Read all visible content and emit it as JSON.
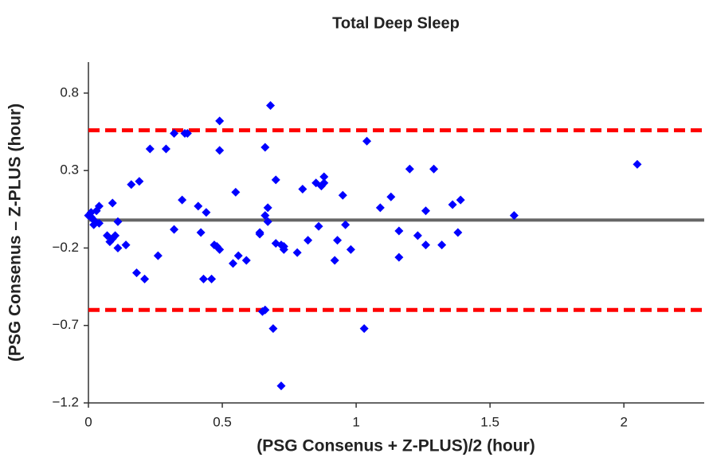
{
  "chart_data": {
    "type": "scatter",
    "title": "Total Deep Sleep",
    "x_label": "(PSG Consenus + Z-PLUS)/2 (hour)",
    "y_label": "(PSG Consenus – Z-PLUS (hour)",
    "xlim": [
      0,
      2.3
    ],
    "ylim": [
      -1.2,
      1.0
    ],
    "xticks": [
      0,
      0.5,
      1,
      1.5,
      2
    ],
    "yticks": [
      0.8,
      0.3,
      {
        "value": -0.2,
        "label": "−0.2"
      },
      {
        "value": -0.7,
        "label": "−0.7"
      },
      {
        "value": -1.2,
        "label": "−1.2"
      }
    ],
    "marker_color": "#0000ff",
    "reference_lines": [
      {
        "value": 0.56,
        "color": "#ff0000",
        "style": "dashed"
      },
      {
        "value": -0.02,
        "color": "#666666",
        "style": "solid"
      },
      {
        "value": -0.6,
        "color": "#ff0000",
        "style": "dashed"
      }
    ],
    "x": [
      0.0,
      0.01,
      0.01,
      0.02,
      0.02,
      0.03,
      0.04,
      0.02,
      0.04,
      0.07,
      0.09,
      0.08,
      0.09,
      0.1,
      0.11,
      0.11,
      0.14,
      0.16,
      0.18,
      0.19,
      0.21,
      0.23,
      0.26,
      0.29,
      0.32,
      0.32,
      0.35,
      0.36,
      0.37,
      0.42,
      0.41,
      0.43,
      0.44,
      0.46,
      0.47,
      0.48,
      0.49,
      0.49,
      0.49,
      0.54,
      0.55,
      0.56,
      0.59,
      0.64,
      0.64,
      0.66,
      0.65,
      0.66,
      0.66,
      0.67,
      0.67,
      0.68,
      0.69,
      0.7,
      0.7,
      0.72,
      0.73,
      0.73,
      0.72,
      0.78,
      0.8,
      0.82,
      0.85,
      0.86,
      0.87,
      0.88,
      0.88,
      0.92,
      0.93,
      0.95,
      0.96,
      0.98,
      1.03,
      1.04,
      1.09,
      1.13,
      1.16,
      1.16,
      1.2,
      1.23,
      1.26,
      1.26,
      1.29,
      1.32,
      1.36,
      1.38,
      1.39,
      1.59,
      2.05
    ],
    "y": [
      0.01,
      0.0,
      0.03,
      -0.02,
      -0.02,
      0.04,
      0.07,
      -0.05,
      -0.04,
      -0.12,
      0.09,
      -0.16,
      -0.14,
      -0.12,
      -0.2,
      -0.03,
      -0.18,
      0.21,
      -0.36,
      0.23,
      -0.4,
      0.44,
      -0.25,
      0.44,
      -0.08,
      0.54,
      0.11,
      0.54,
      0.54,
      -0.1,
      0.07,
      -0.4,
      0.03,
      -0.4,
      -0.18,
      -0.19,
      0.62,
      0.43,
      -0.21,
      -0.3,
      0.16,
      -0.25,
      -0.28,
      -0.11,
      -0.1,
      0.45,
      -0.61,
      -0.6,
      0.01,
      0.06,
      -0.03,
      0.72,
      -0.72,
      0.24,
      -0.17,
      -1.09,
      -0.19,
      -0.21,
      -0.18,
      -0.23,
      0.18,
      -0.15,
      0.22,
      -0.06,
      0.2,
      0.26,
      0.22,
      -0.28,
      -0.15,
      0.14,
      -0.05,
      -0.21,
      -0.72,
      0.49,
      0.06,
      0.13,
      -0.09,
      -0.26,
      0.31,
      -0.12,
      -0.18,
      0.04,
      0.31,
      -0.18,
      0.08,
      -0.1,
      0.11,
      0.01,
      0.34
    ]
  }
}
